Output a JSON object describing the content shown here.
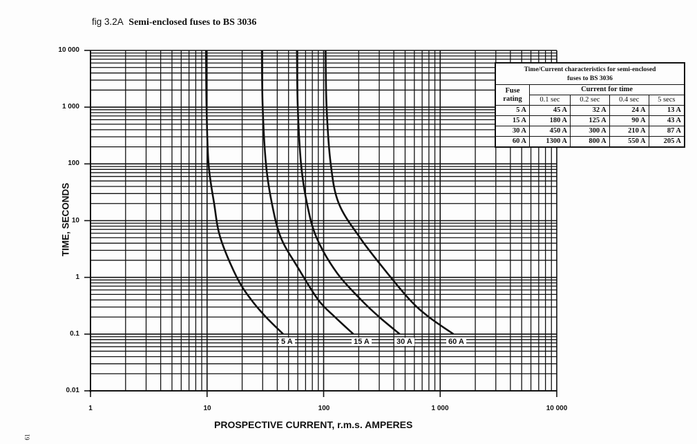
{
  "figure": {
    "label": "fig 3.2A",
    "title": "Semi-enclosed fuses to BS 3036",
    "page_number": "61"
  },
  "table": {
    "caption_line1": "Time/Current characteristics for semi-enclosed",
    "caption_line2": "fuses to BS 3036",
    "col_fuse": "Fuse rating",
    "col_group": "Current for time",
    "time_headers": [
      "0.1 sec",
      "0.2 sec",
      "0.4 sec",
      "5 secs"
    ],
    "rows": [
      {
        "rating": "5 A",
        "values": [
          "45 A",
          "32 A",
          "24 A",
          "13 A"
        ]
      },
      {
        "rating": "15 A",
        "values": [
          "180 A",
          "125 A",
          "90 A",
          "43 A"
        ]
      },
      {
        "rating": "30 A",
        "values": [
          "450 A",
          "300 A",
          "210 A",
          "87 A"
        ]
      },
      {
        "rating": "60 A",
        "values": [
          "1300 A",
          "800 A",
          "550 A",
          "205 A"
        ]
      }
    ]
  },
  "axes": {
    "y_title": "TIME, SECONDS",
    "x_title": "PROSPECTIVE CURRENT, r.m.s. AMPERES",
    "y_ticks": [
      "10 000",
      "1 000",
      "100",
      "10",
      "1",
      "0.1",
      "0.01"
    ],
    "x_ticks": [
      "1",
      "10",
      "100",
      "1 000",
      "10 000"
    ]
  },
  "curve_labels": [
    "5 A",
    "15 A",
    "30 A",
    "60 A"
  ],
  "chart_data": {
    "type": "line",
    "title": "fig 3.2A Semi-enclosed fuses to BS 3036",
    "xlabel": "PROSPECTIVE CURRENT, r.m.s. AMPERES",
    "ylabel": "TIME, SECONDS",
    "xscale": "log",
    "yscale": "log",
    "xlim": [
      1,
      10000
    ],
    "ylim": [
      0.01,
      10000
    ],
    "grid": true,
    "legend_position": "inline labels at curve ends near 0.1 s",
    "x_tick_labels": [
      "1",
      "10",
      "100",
      "1 000",
      "10 000"
    ],
    "y_tick_labels": [
      "0.01",
      "0.1",
      "1",
      "10",
      "100",
      "1 000",
      "10 000"
    ],
    "series": [
      {
        "name": "5 A",
        "points": [
          [
            9.8,
            10000
          ],
          [
            9.9,
            1000
          ],
          [
            10.3,
            100
          ],
          [
            11.5,
            20
          ],
          [
            13,
            5
          ],
          [
            18,
            1
          ],
          [
            24,
            0.4
          ],
          [
            32,
            0.2
          ],
          [
            45,
            0.1
          ]
        ]
      },
      {
        "name": "15 A",
        "points": [
          [
            29.5,
            10000
          ],
          [
            30,
            1000
          ],
          [
            32,
            100
          ],
          [
            36,
            20
          ],
          [
            43,
            5
          ],
          [
            60,
            1.5
          ],
          [
            90,
            0.4
          ],
          [
            125,
            0.2
          ],
          [
            180,
            0.1
          ]
        ]
      },
      {
        "name": "30 A",
        "points": [
          [
            59,
            10000
          ],
          [
            60,
            1000
          ],
          [
            64,
            100
          ],
          [
            72,
            20
          ],
          [
            87,
            5
          ],
          [
            130,
            1.2
          ],
          [
            210,
            0.4
          ],
          [
            300,
            0.2
          ],
          [
            450,
            0.1
          ]
        ]
      },
      {
        "name": "60 A",
        "points": [
          [
            104,
            10000
          ],
          [
            106,
            1000
          ],
          [
            115,
            100
          ],
          [
            135,
            20
          ],
          [
            205,
            5
          ],
          [
            330,
            1.4
          ],
          [
            550,
            0.4
          ],
          [
            800,
            0.2
          ],
          [
            1300,
            0.1
          ]
        ]
      }
    ],
    "table": {
      "title": "Time/Current characteristics for semi-enclosed fuses to BS 3036",
      "columns": [
        "Fuse rating",
        "0.1 sec",
        "0.2 sec",
        "0.4 sec",
        "5 secs"
      ],
      "rows": [
        [
          "5 A",
          "45 A",
          "32 A",
          "24 A",
          "13 A"
        ],
        [
          "15 A",
          "180 A",
          "125 A",
          "90 A",
          "43 A"
        ],
        [
          "30 A",
          "450 A",
          "300 A",
          "210 A",
          "87 A"
        ],
        [
          "60 A",
          "1300 A",
          "800 A",
          "550 A",
          "205 A"
        ]
      ]
    }
  },
  "colors": {
    "ink": "#111111",
    "paper": "#fdfdfd"
  }
}
